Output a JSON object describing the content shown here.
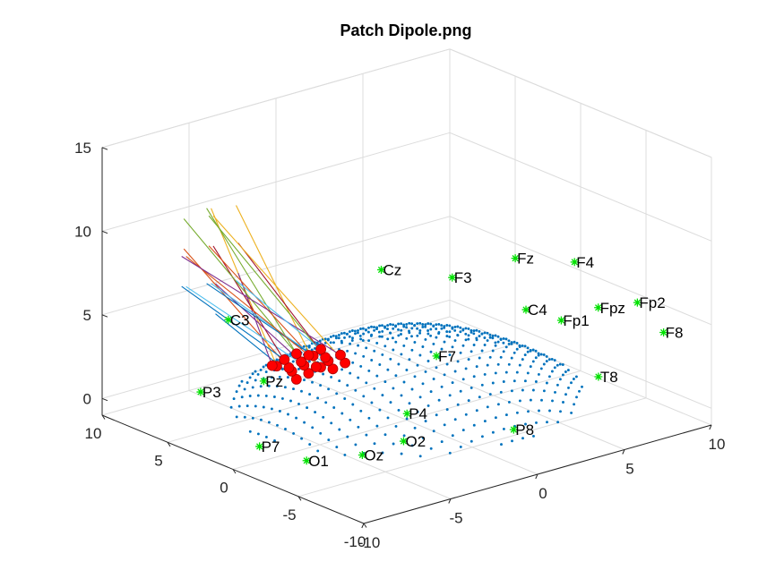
{
  "chart_data": {
    "type": "scatter",
    "title": "Patch Dipole.png",
    "view": "3d",
    "grid": true,
    "x_axis": {
      "ticks": [
        -10,
        -5,
        0,
        5,
        10
      ],
      "range": [
        -10,
        10
      ]
    },
    "y_axis": {
      "ticks": [
        -10,
        -5,
        0,
        5,
        10
      ],
      "range": [
        -10,
        10
      ]
    },
    "z_axis": {
      "ticks": [
        0,
        5,
        10,
        15
      ],
      "range": [
        -1,
        15
      ]
    },
    "colors": {
      "source_grid": "#0072bd",
      "patch_dipoles": "#ff0000",
      "electrodes": "#00e000",
      "moments": [
        "#0072bd",
        "#d95319",
        "#edb120",
        "#7e2f8e",
        "#77ac30",
        "#4dbeee",
        "#a2142f"
      ]
    },
    "series": [
      {
        "kind": "electrodes",
        "labels": [
          "Cz",
          "C3",
          "F3",
          "Fz",
          "P3",
          "Pz",
          "F7",
          "C4",
          "F4",
          "Fp1",
          "Fpz",
          "P7",
          "P4",
          "Fp2",
          "O1",
          "F8",
          "Oz",
          "O2",
          "P8",
          "T8"
        ]
      },
      {
        "kind": "source_grid"
      },
      {
        "kind": "patch_dipoles"
      },
      {
        "kind": "dipole_moments"
      }
    ]
  }
}
